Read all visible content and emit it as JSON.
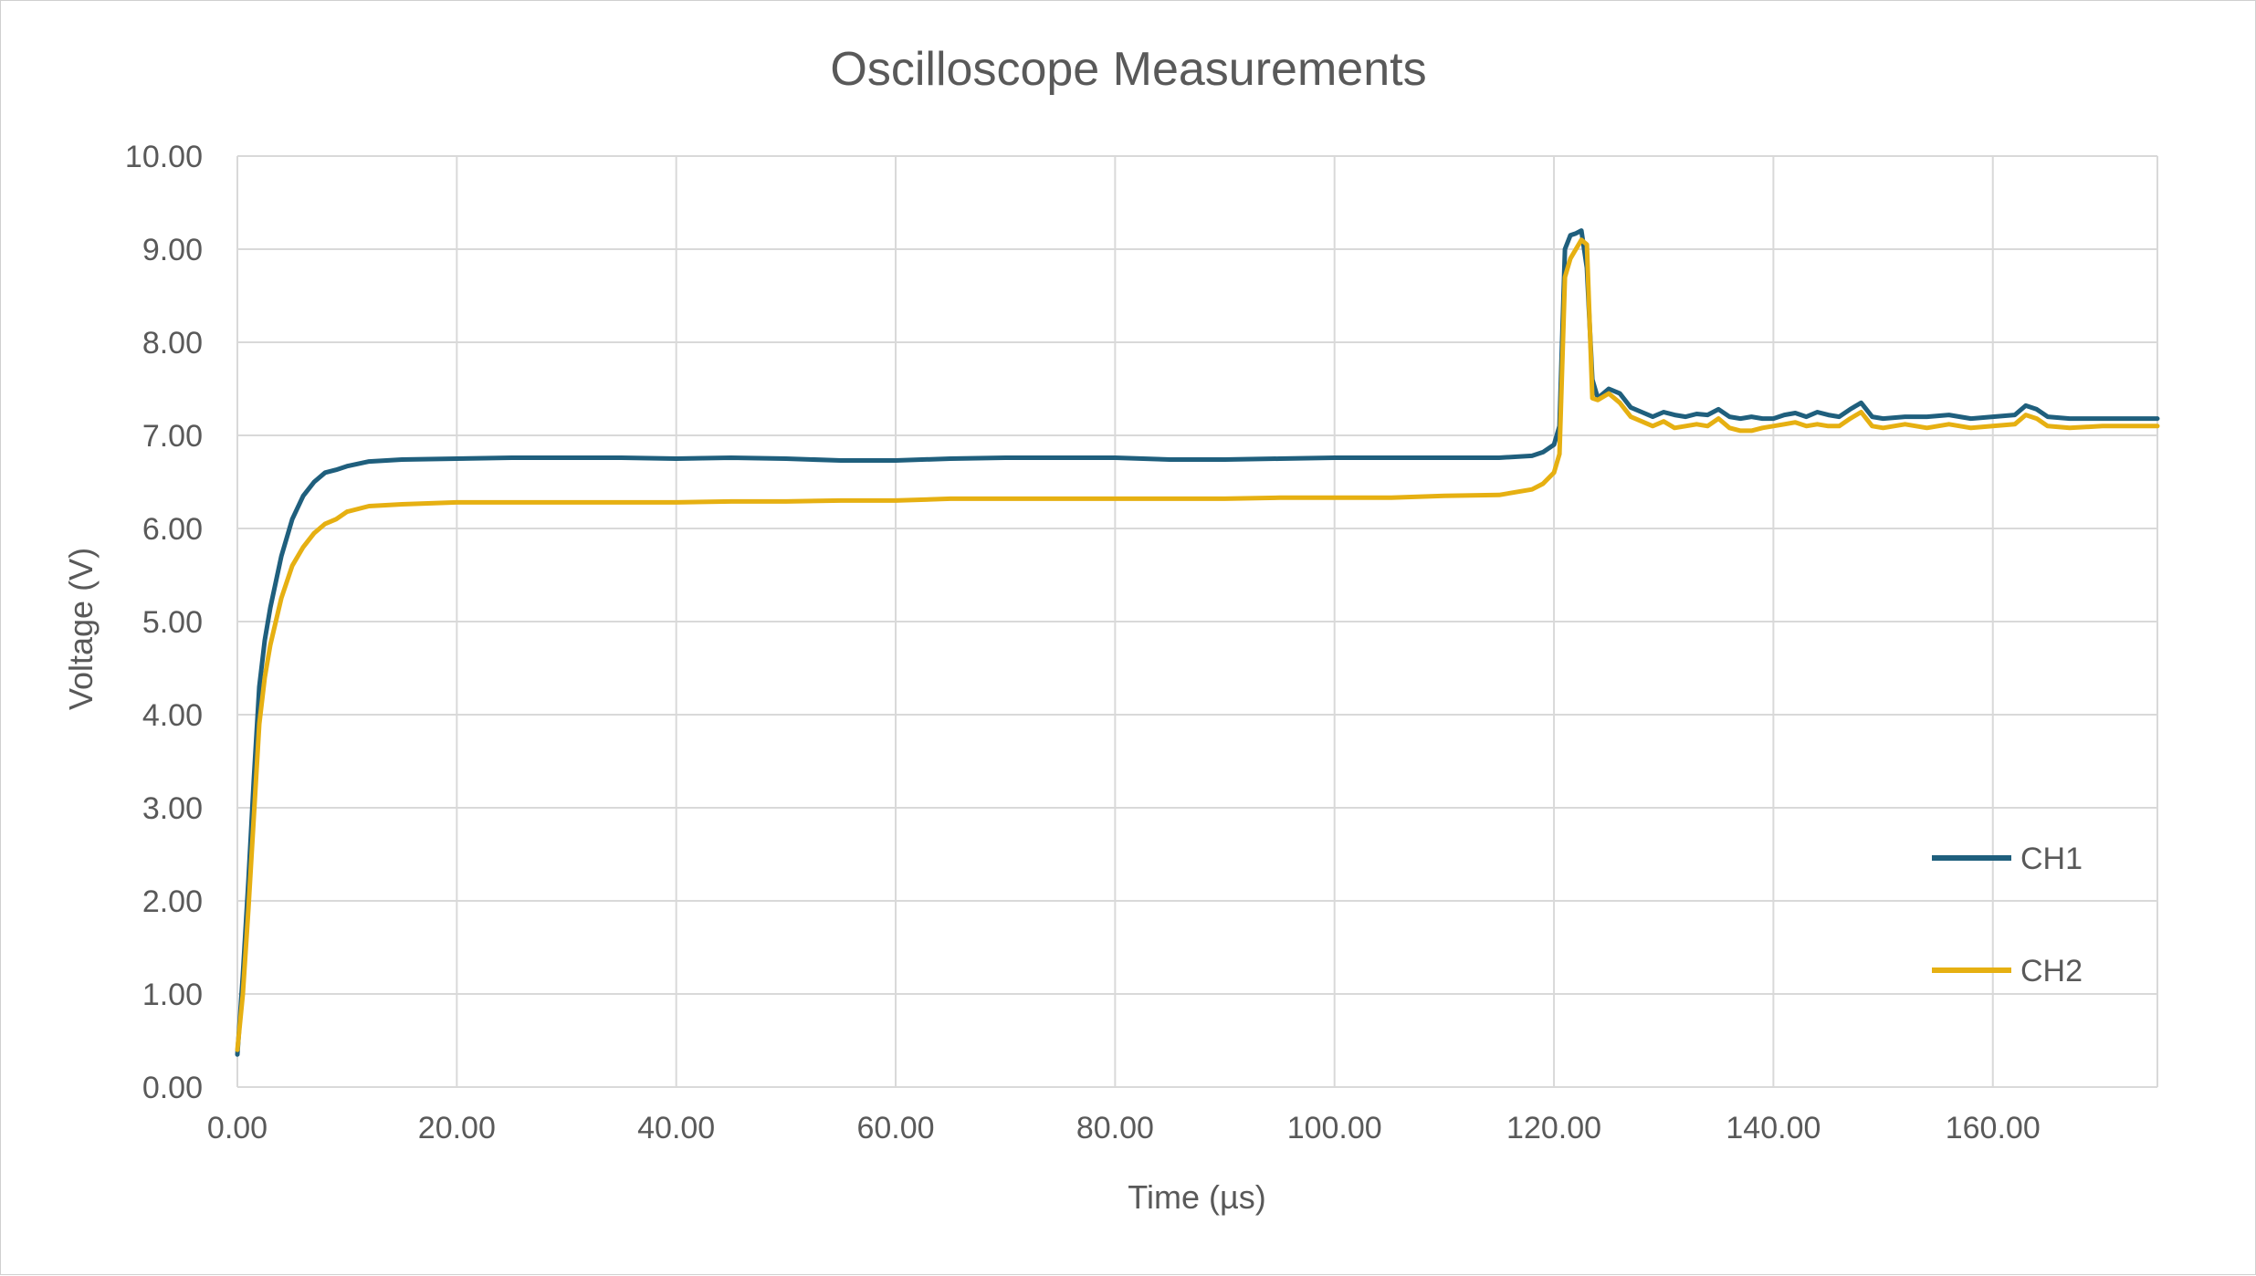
{
  "chart_data": {
    "type": "line",
    "title": "Oscilloscope Measurements",
    "xlabel": "Time (µs)",
    "ylabel": "Voltage (V)",
    "xlim": [
      0,
      175
    ],
    "ylim": [
      0,
      10
    ],
    "xticks": [
      0,
      20,
      40,
      60,
      80,
      100,
      120,
      140,
      160
    ],
    "xtick_labels": [
      "0.00",
      "20.00",
      "40.00",
      "60.00",
      "80.00",
      "100.00",
      "120.00",
      "140.00",
      "160.00"
    ],
    "yticks": [
      0,
      1,
      2,
      3,
      4,
      5,
      6,
      7,
      8,
      9,
      10
    ],
    "ytick_labels": [
      "0.00",
      "1.00",
      "2.00",
      "3.00",
      "4.00",
      "5.00",
      "6.00",
      "7.00",
      "8.00",
      "9.00",
      "10.00"
    ],
    "grid": true,
    "legend_position": "right",
    "series": [
      {
        "name": "CH1",
        "color": "#1f5f7d",
        "x": [
          0,
          0.5,
          1,
          1.5,
          2,
          2.5,
          3,
          4,
          5,
          6,
          7,
          8,
          9,
          10,
          12,
          15,
          20,
          25,
          30,
          35,
          40,
          45,
          50,
          55,
          60,
          65,
          70,
          75,
          80,
          85,
          90,
          95,
          100,
          105,
          110,
          115,
          118,
          119,
          120,
          120.5,
          121,
          121.5,
          122,
          122.5,
          123,
          123.5,
          124,
          125,
          126,
          127,
          128,
          129,
          130,
          131,
          132,
          133,
          134,
          135,
          136,
          137,
          138,
          139,
          140,
          141,
          142,
          143,
          144,
          145,
          146,
          147,
          148,
          149,
          150,
          152,
          154,
          156,
          158,
          160,
          162,
          163,
          164,
          165,
          167,
          170,
          173,
          175
        ],
        "y": [
          0.35,
          1.2,
          2.2,
          3.3,
          4.3,
          4.8,
          5.15,
          5.7,
          6.1,
          6.35,
          6.5,
          6.6,
          6.63,
          6.67,
          6.72,
          6.74,
          6.75,
          6.76,
          6.76,
          6.76,
          6.75,
          6.76,
          6.75,
          6.73,
          6.73,
          6.75,
          6.76,
          6.76,
          6.76,
          6.74,
          6.74,
          6.75,
          6.76,
          6.76,
          6.76,
          6.76,
          6.78,
          6.82,
          6.9,
          7.1,
          9.0,
          9.15,
          9.17,
          9.2,
          8.8,
          7.6,
          7.4,
          7.5,
          7.45,
          7.3,
          7.25,
          7.2,
          7.25,
          7.22,
          7.2,
          7.23,
          7.22,
          7.28,
          7.2,
          7.18,
          7.2,
          7.18,
          7.18,
          7.22,
          7.24,
          7.2,
          7.25,
          7.22,
          7.2,
          7.28,
          7.35,
          7.2,
          7.18,
          7.2,
          7.2,
          7.22,
          7.18,
          7.2,
          7.22,
          7.32,
          7.28,
          7.2,
          7.18,
          7.18,
          7.18,
          7.18
        ]
      },
      {
        "name": "CH2",
        "color": "#e6b012",
        "x": [
          0,
          0.5,
          1,
          1.5,
          2,
          2.5,
          3,
          4,
          5,
          6,
          7,
          8,
          9,
          10,
          12,
          15,
          20,
          25,
          30,
          35,
          40,
          45,
          50,
          55,
          60,
          65,
          70,
          75,
          80,
          85,
          90,
          95,
          100,
          105,
          110,
          115,
          118,
          119,
          120,
          120.5,
          121,
          121.5,
          122,
          122.5,
          123,
          123.5,
          124,
          125,
          126,
          127,
          128,
          129,
          130,
          131,
          132,
          133,
          134,
          135,
          136,
          137,
          138,
          139,
          140,
          141,
          142,
          143,
          144,
          145,
          146,
          147,
          148,
          149,
          150,
          152,
          154,
          156,
          158,
          160,
          162,
          163,
          164,
          165,
          167,
          170,
          173,
          175
        ],
        "y": [
          0.4,
          1.0,
          1.9,
          2.9,
          3.9,
          4.4,
          4.75,
          5.25,
          5.6,
          5.8,
          5.95,
          6.05,
          6.1,
          6.18,
          6.24,
          6.26,
          6.28,
          6.28,
          6.28,
          6.28,
          6.28,
          6.29,
          6.29,
          6.3,
          6.3,
          6.32,
          6.32,
          6.32,
          6.32,
          6.32,
          6.32,
          6.33,
          6.33,
          6.33,
          6.35,
          6.36,
          6.42,
          6.48,
          6.6,
          6.8,
          8.7,
          8.9,
          9.0,
          9.1,
          9.05,
          7.4,
          7.38,
          7.45,
          7.35,
          7.2,
          7.15,
          7.1,
          7.15,
          7.08,
          7.1,
          7.12,
          7.1,
          7.18,
          7.08,
          7.05,
          7.05,
          7.08,
          7.1,
          7.12,
          7.14,
          7.1,
          7.12,
          7.1,
          7.1,
          7.18,
          7.25,
          7.1,
          7.08,
          7.12,
          7.08,
          7.12,
          7.08,
          7.1,
          7.12,
          7.22,
          7.18,
          7.1,
          7.08,
          7.1,
          7.1,
          7.1
        ]
      }
    ]
  }
}
